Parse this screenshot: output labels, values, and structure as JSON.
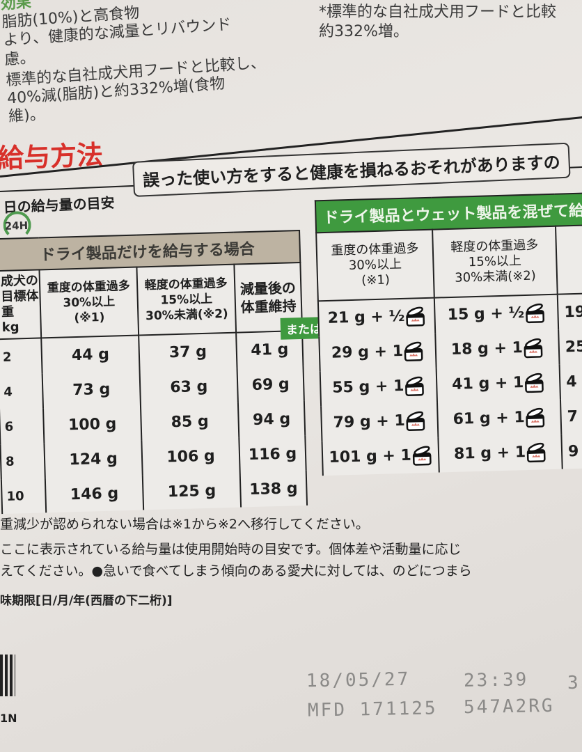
{
  "intro_left": {
    "tag": "効果",
    "lines": [
      "脂肪(10%)と高食物",
      "より、健康的な減量とリバウンド",
      "慮。",
      "標準的な自社成犬用フードと比較し、",
      "40%減(脂肪)と約332%増(食物",
      "維)。"
    ]
  },
  "intro_right": {
    "lines": [
      "*標準的な自社成犬用フードと比較",
      "約332%増。"
    ]
  },
  "section_heading": "給与方法",
  "warning_text": "誤った使い方をすると健康を損ねるおそれがありますの",
  "daily_guide_label": "日の給与量の目安",
  "clock_label": "24H",
  "dry_table": {
    "title": "ドライ製品だけを給与する場合",
    "headers": {
      "weight": [
        "成犬の",
        "目標体重",
        "kg"
      ],
      "severe": [
        "重度の体重過多",
        "30%以上",
        "(※1)"
      ],
      "mild": [
        "軽度の体重過多",
        "15%以上",
        "30%未満(※2)"
      ],
      "maintain": [
        "減量後の",
        "体重維持"
      ]
    },
    "rows": [
      {
        "kg": "2",
        "severe": "44 g",
        "mild": "37 g",
        "maintain": "41 g"
      },
      {
        "kg": "4",
        "severe": "73 g",
        "mild": "63 g",
        "maintain": "69 g"
      },
      {
        "kg": "6",
        "severe": "100 g",
        "mild": "85 g",
        "maintain": "94 g"
      },
      {
        "kg": "8",
        "severe": "124 g",
        "mild": "106 g",
        "maintain": "116 g"
      },
      {
        "kg": "10",
        "severe": "146 g",
        "mild": "125 g",
        "maintain": "138 g"
      }
    ]
  },
  "or_label": "または",
  "mixed_table": {
    "title": "ドライ製品とウェット製品を混ぜて給与",
    "headers": {
      "severe": [
        "重度の体重過多",
        "30%以上",
        "(※1)"
      ],
      "mild": [
        "軽度の体重過多",
        "15%以上",
        "30%未満(※2)"
      ]
    },
    "rows": [
      {
        "severe": "21 g + ½",
        "mild": "15 g + ½",
        "partial": "19"
      },
      {
        "severe": "29 g + 1",
        "mild": "18 g + 1",
        "partial": "25"
      },
      {
        "severe": "55 g + 1",
        "mild": "41 g + 1",
        "partial": "4"
      },
      {
        "severe": "79 g + 1",
        "mild": "61 g + 1",
        "partial": "7"
      },
      {
        "severe": "101 g + 1",
        "mild": "81 g + 1",
        "partial": "9"
      }
    ],
    "can_icon": "wet-food-can-icon"
  },
  "notes": [
    "重減少が認められない場合は※1から※2へ移行してください。",
    "ここに表示されている給与量は使用開始時の目安です。個体差や活動量に応じ",
    "えてください。●急いで食べてしまう傾向のある愛犬に対しては、のどにつまら",
    "味期限[日/月/年(西暦の下二桁)]"
  ],
  "print_codes": {
    "expiry": "18/05/27",
    "time": "23:39",
    "extra": "3",
    "mfd": "MFD 171125",
    "lot": "547A2RG"
  },
  "barcode_text": "1N",
  "colors": {
    "heading_red": "#d8302a",
    "green": "#3f9a3f",
    "tan": "#bdb3a2"
  }
}
